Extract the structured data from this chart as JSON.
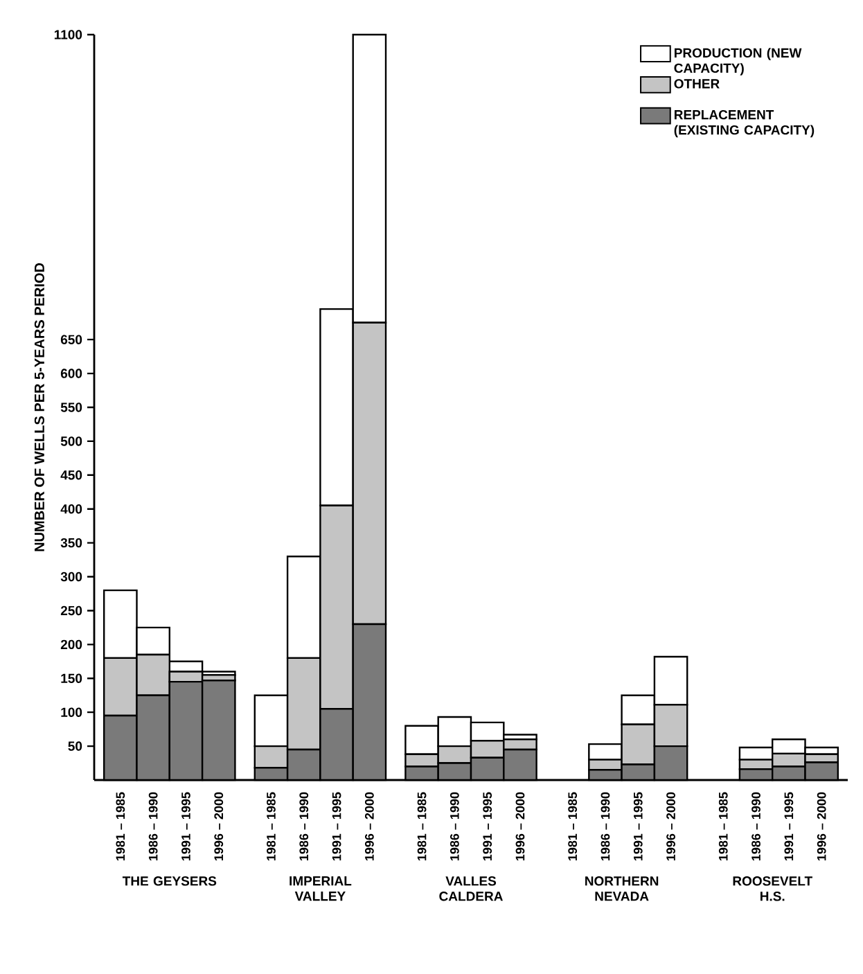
{
  "chart_data": {
    "type": "bar",
    "stacked": true,
    "ylabel": "NUMBER OF WELLS PER 5-YEARS PERIOD",
    "categories": [
      "1981 – 1985",
      "1986 – 1990",
      "1991 – 1995",
      "1996 – 2000",
      "1981 – 1985",
      "1986 – 1990",
      "1991 – 1995",
      "1996 – 2000",
      "1981 – 1985",
      "1986 – 1990",
      "1991 – 1995",
      "1996 – 2000",
      "1981 – 1985",
      "1986 – 1990",
      "1991 – 1995",
      "1996 – 2000",
      "1981 – 1985",
      "1986 – 1990",
      "1991 – 1995",
      "1996 – 2000"
    ],
    "series": [
      {
        "name": "REPLACEMENT (EXISTING CAPACITY)",
        "color": "#7a7a7a",
        "values": [
          95,
          125,
          145,
          147,
          18,
          45,
          105,
          230,
          20,
          25,
          33,
          45,
          0,
          15,
          23,
          50,
          0,
          16,
          20,
          26
        ]
      },
      {
        "name": "OTHER",
        "color": "#c4c4c4",
        "values": [
          85,
          60,
          15,
          8,
          32,
          135,
          300,
          445,
          18,
          25,
          25,
          15,
          0,
          15,
          59,
          61,
          0,
          14,
          19,
          12
        ]
      },
      {
        "name": "PRODUCTION (NEW CAPACITY)",
        "color": "#ffffff",
        "values": [
          100,
          40,
          15,
          5,
          75,
          150,
          290,
          425,
          42,
          43,
          27,
          7,
          0,
          23,
          43,
          71,
          0,
          18,
          21,
          10
        ]
      }
    ],
    "ylim": [
      0,
      1100
    ],
    "yticks": [
      50,
      100,
      150,
      200,
      250,
      300,
      350,
      400,
      450,
      500,
      550,
      600,
      650,
      1100
    ],
    "legend": "top right",
    "annotations": [
      "THE GEYSERS",
      "IMPERIAL VALLEY",
      "VALLES CALDERA",
      "NORTHERN NEVADA",
      "ROOSEVELT H.S."
    ]
  }
}
